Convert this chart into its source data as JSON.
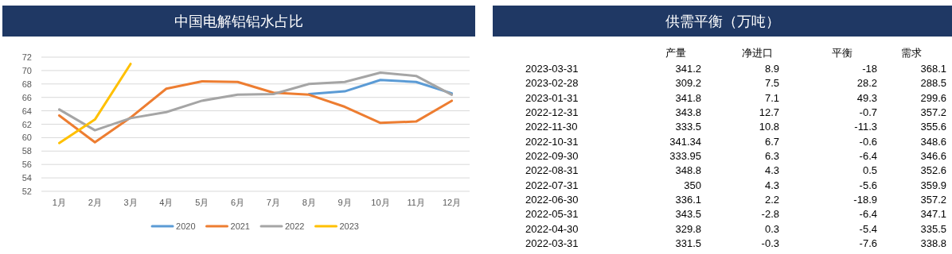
{
  "chart_data": [
    {
      "type": "line",
      "title": "中国电解铝铝水占比",
      "categories": [
        "1月",
        "2月",
        "3月",
        "4月",
        "5月",
        "6月",
        "7月",
        "8月",
        "9月",
        "10月",
        "11月",
        "12月"
      ],
      "series": [
        {
          "name": "2020",
          "color": "#5b9bd5",
          "values": [
            null,
            null,
            null,
            null,
            null,
            null,
            null,
            66.5,
            66.9,
            68.6,
            68.3,
            66.6
          ]
        },
        {
          "name": "2021",
          "color": "#ed7d31",
          "values": [
            63.3,
            59.3,
            63.0,
            67.3,
            68.4,
            68.3,
            66.7,
            66.4,
            64.6,
            62.2,
            62.4,
            65.5
          ]
        },
        {
          "name": "2022",
          "color": "#a5a5a5",
          "values": [
            64.2,
            61.1,
            62.9,
            63.8,
            65.5,
            66.4,
            66.5,
            68.0,
            68.3,
            69.7,
            69.2,
            66.4
          ]
        },
        {
          "name": "2023",
          "color": "#ffc000",
          "values": [
            59.2,
            62.7,
            71.0,
            null,
            null,
            null,
            null,
            null,
            null,
            null,
            null,
            null
          ]
        }
      ],
      "ylim": [
        52,
        72
      ],
      "yticks": [
        52,
        54,
        56,
        58,
        60,
        62,
        64,
        66,
        68,
        70,
        72
      ],
      "grid": "y",
      "legend": "bottom",
      "marker": "none",
      "line_style": "solid"
    },
    {
      "type": "other",
      "title": "供需平衡（万吨）",
      "categories": [
        "2023-03-31",
        "2023-02-28",
        "2023-01-31",
        "2022-12-31",
        "2022-11-30",
        "2022-10-31",
        "2022-09-30",
        "2022-08-31",
        "2022-07-31",
        "2022-06-30",
        "2022-05-31",
        "2022-04-30",
        "2022-03-31"
      ],
      "series": [
        {
          "name": "产量",
          "values": [
            341.2,
            309.2,
            341.8,
            343.8,
            333.5,
            341.34,
            333.95,
            348.8,
            350,
            336.1,
            343.5,
            329.8,
            331.5
          ]
        },
        {
          "name": "净进口",
          "values": [
            8.9,
            7.5,
            7.1,
            12.7,
            10.8,
            6.7,
            6.3,
            4.3,
            4.3,
            2.2,
            -2.8,
            0.3,
            -0.3
          ]
        },
        {
          "name": "平衡",
          "values": [
            -18,
            28.2,
            49.3,
            -0.7,
            -11.3,
            -0.6,
            -6.4,
            0.5,
            -5.6,
            -18.9,
            -6.4,
            -5.4,
            -7.6
          ]
        },
        {
          "name": "需求",
          "values": [
            368.1,
            288.5,
            299.6,
            357.2,
            355.6,
            348.6,
            346.6,
            352.6,
            359.9,
            357.2,
            347.1,
            335.5,
            338.8
          ]
        }
      ],
      "data_labels": true
    }
  ]
}
